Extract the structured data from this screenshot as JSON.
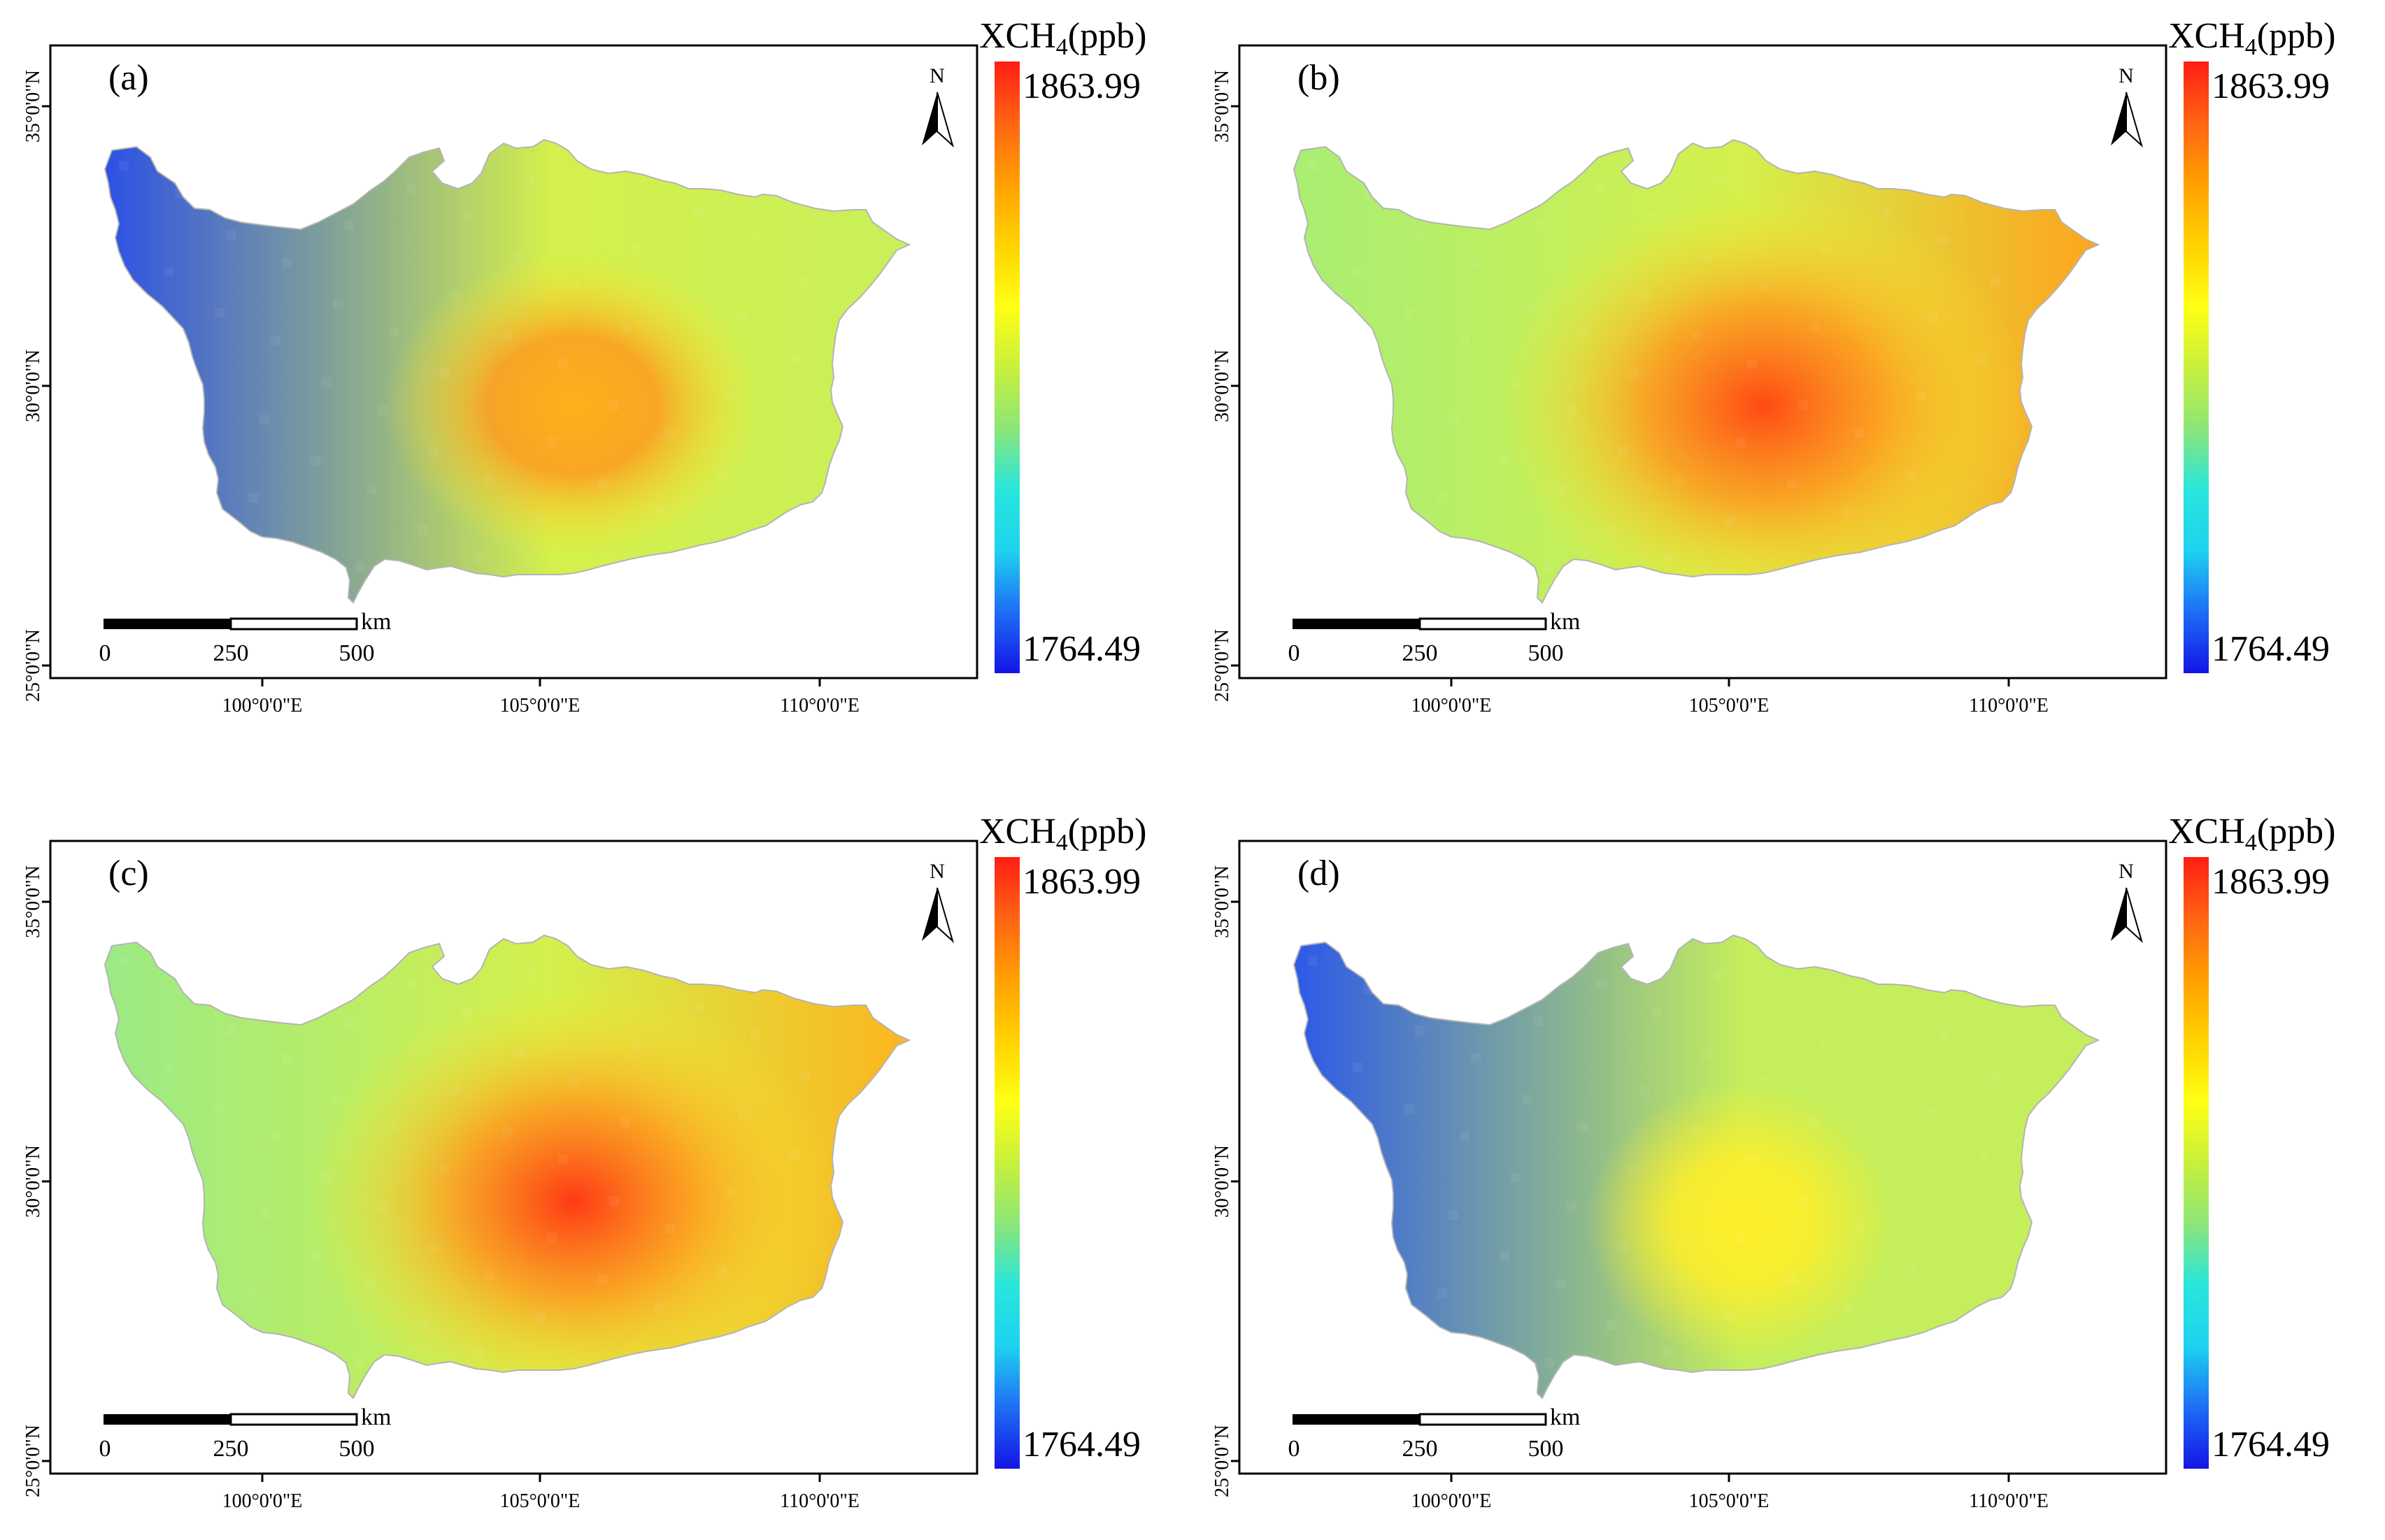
{
  "figure": {
    "legend_title_prefix": "XCH",
    "legend_title_sub": "4",
    "legend_title_suffix": "(ppb)",
    "legend_max": "1863.99",
    "legend_min": "1764.49",
    "north_label": "N",
    "scale_unit": "km",
    "scale_ticks": [
      "0",
      "250",
      "500"
    ],
    "lon_ticks": [
      "100°0'0\"E",
      "105°0'0\"E",
      "110°0'0\"E"
    ],
    "lat_ticks": [
      "35°0'0\"N",
      "30°0'0\"N",
      "25°0'0\"N"
    ],
    "colorbar_colors": [
      "#1414e6",
      "#1e6ef5",
      "#1ed2f0",
      "#28e6dc",
      "#8ce678",
      "#c8f03c",
      "#ffff14",
      "#ffd200",
      "#ffa000",
      "#ff6414",
      "#ff1e14"
    ],
    "panels": [
      {
        "label": "(a)",
        "hotspot": "moderate",
        "west": "#2a4ee8",
        "center": "#ffb01a",
        "east": "#c8f05a"
      },
      {
        "label": "(b)",
        "hotspot": "strong",
        "west": "#a8ee74",
        "center": "#ff4a14",
        "east": "#ffa21c"
      },
      {
        "label": "(c)",
        "hotspot": "strong",
        "west": "#9aea86",
        "center": "#ff3a14",
        "east": "#ffb21c"
      },
      {
        "label": "(d)",
        "hotspot": "weak",
        "west": "#2a56ea",
        "center": "#ffee2a",
        "east": "#c4ee5c"
      }
    ]
  }
}
